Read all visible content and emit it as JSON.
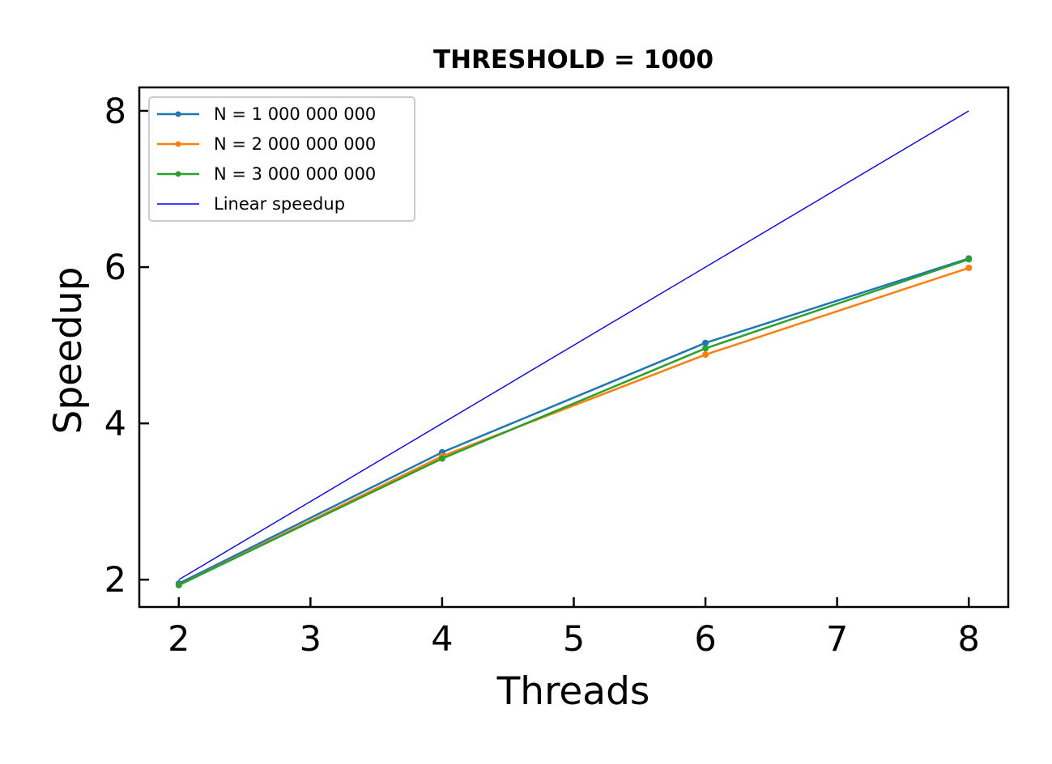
{
  "chart_data": {
    "type": "line",
    "title": "THRESHOLD = 1000",
    "xlabel": "Threads",
    "ylabel": "Speedup",
    "x": [
      2,
      4,
      6,
      8
    ],
    "xlim": [
      1.7,
      8.3
    ],
    "ylim": [
      1.65,
      8.3
    ],
    "xticks": [
      2,
      3,
      4,
      5,
      6,
      7,
      8
    ],
    "yticks": [
      2,
      4,
      6,
      8
    ],
    "grid": false,
    "legend_position": "top-left",
    "series": [
      {
        "name": "N = 1 000 000 000",
        "color": "#1f77b4",
        "markers": true,
        "values": [
          1.95,
          3.63,
          5.03,
          6.11
        ]
      },
      {
        "name": "N = 2 000 000 000",
        "color": "#ff7f0e",
        "markers": true,
        "values": [
          1.93,
          3.58,
          4.88,
          5.99
        ]
      },
      {
        "name": "N = 3 000 000 000",
        "color": "#2ca02c",
        "markers": true,
        "values": [
          1.93,
          3.55,
          4.96,
          6.1
        ]
      },
      {
        "name": "Linear speedup",
        "color": "#0000ff",
        "markers": false,
        "values": [
          2,
          4,
          6,
          8
        ]
      }
    ]
  }
}
